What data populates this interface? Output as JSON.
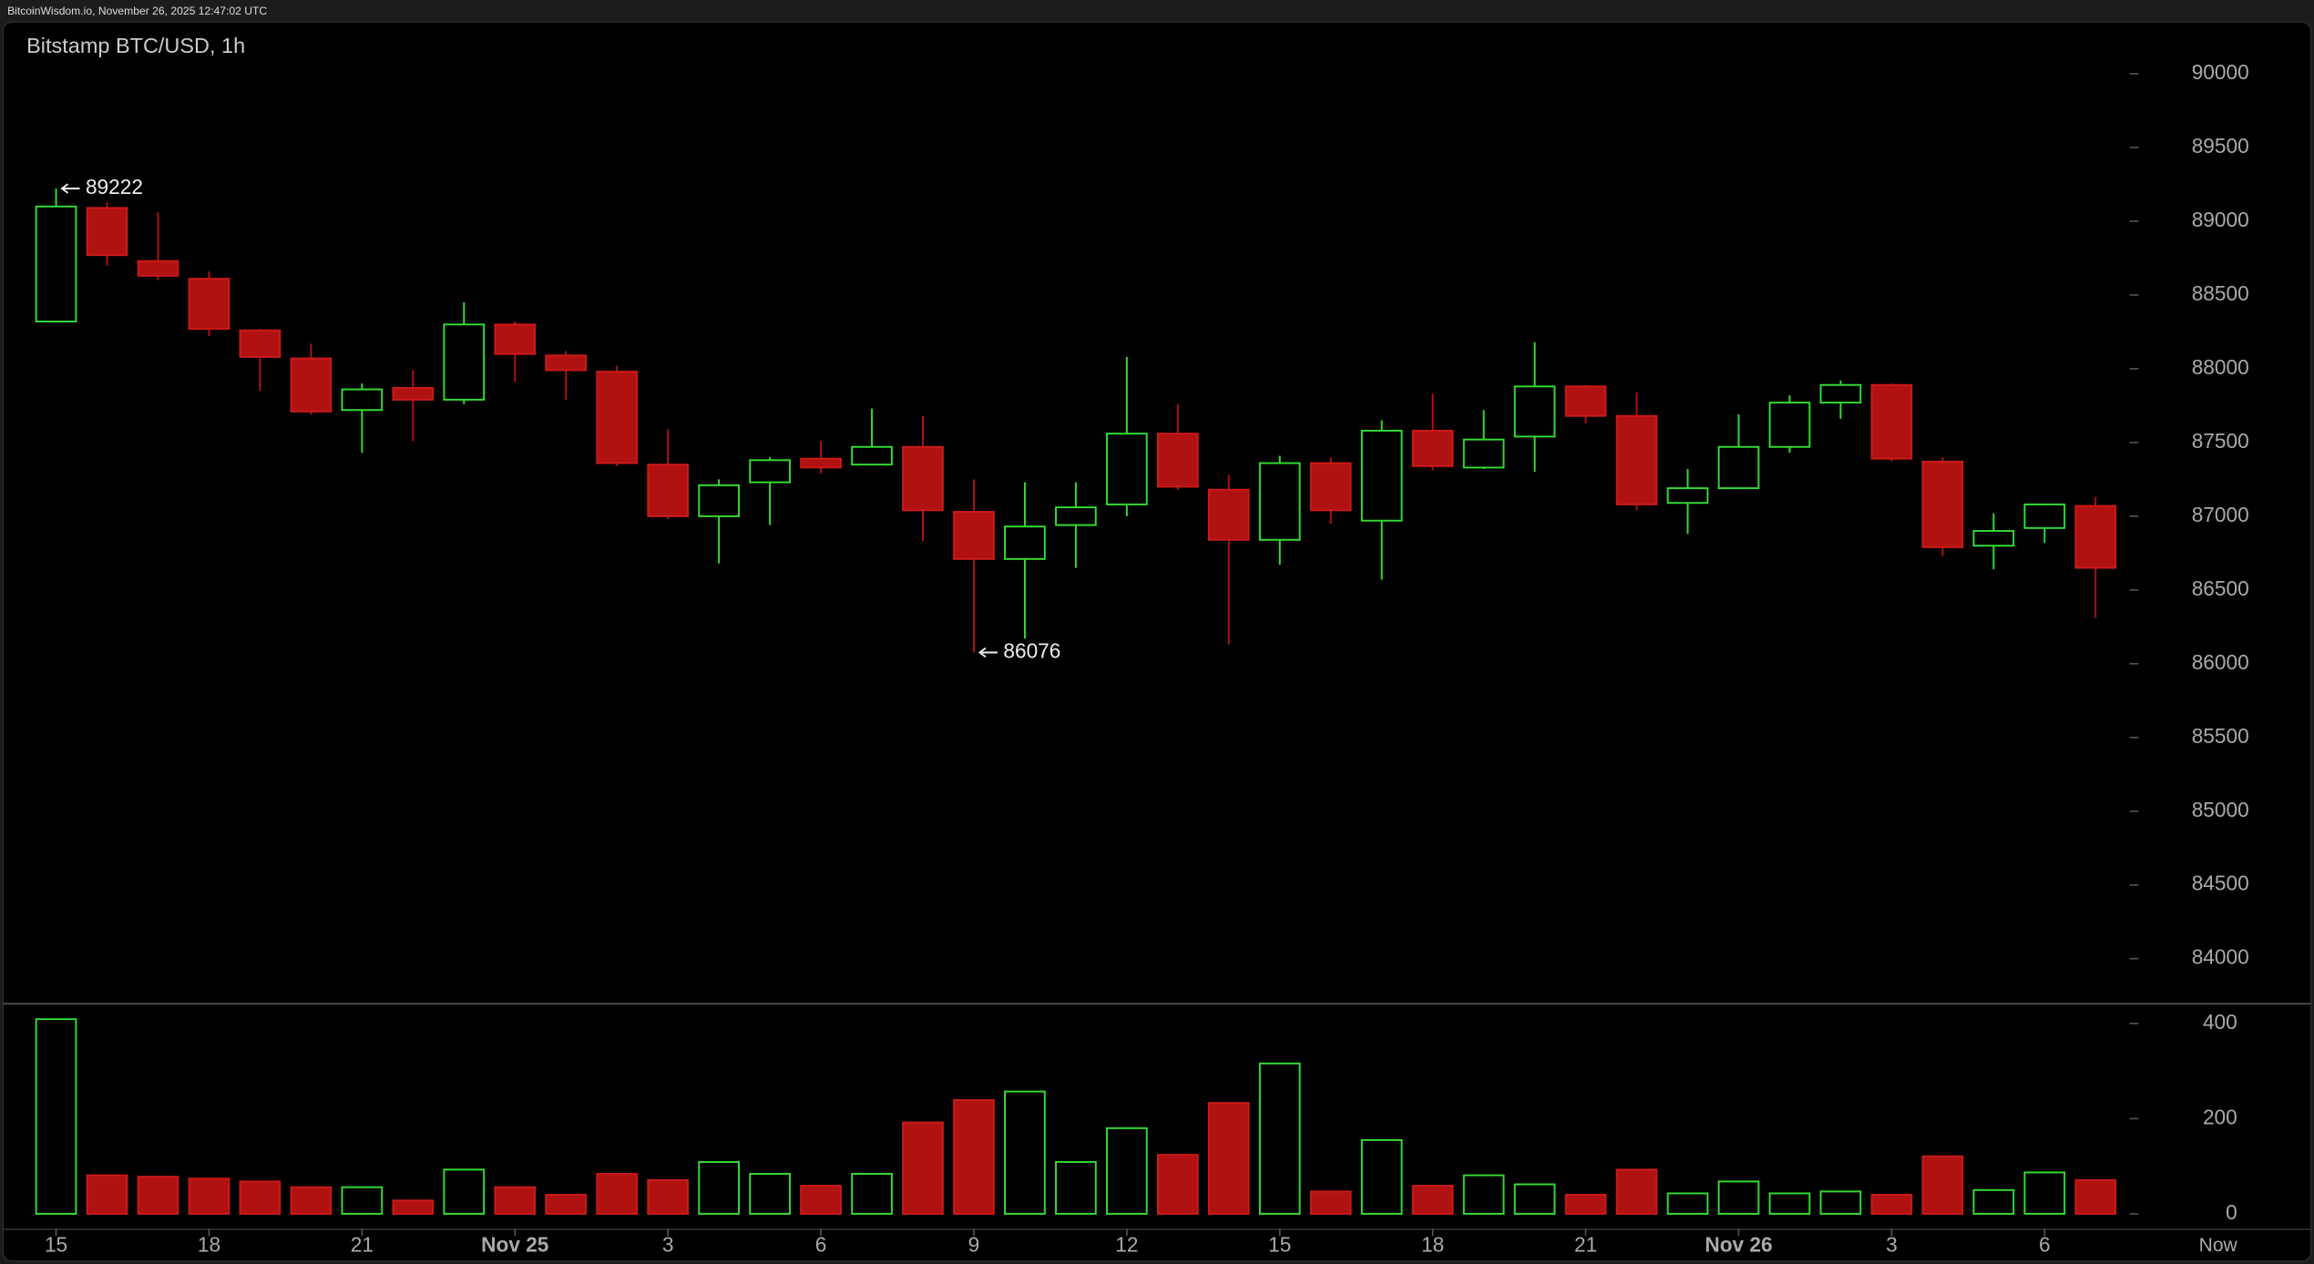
{
  "chart_data": {
    "type": "candlestick",
    "header": "BitcoinWisdom.io, November 26, 2025 12:47:02 UTC",
    "title": "Bitstamp BTC/USD, 1h",
    "categories": [
      "15",
      null,
      null,
      "18",
      null,
      null,
      "21",
      null,
      null,
      "Nov 25",
      null,
      null,
      "3",
      null,
      null,
      "6",
      null,
      null,
      "9",
      null,
      null,
      "12",
      null,
      null,
      "15",
      null,
      null,
      "18",
      null,
      null,
      "21",
      null,
      null,
      "Nov 26",
      null,
      null,
      "3",
      null,
      null,
      "6",
      null
    ],
    "x_end_label": "Now",
    "open": [
      88320,
      89090,
      88730,
      88610,
      88260,
      88070,
      87720,
      87870,
      87790,
      88300,
      88090,
      87980,
      87350,
      87000,
      87230,
      87390,
      87350,
      87470,
      87030,
      86710,
      86940,
      87080,
      87560,
      87180,
      86840,
      87360,
      86970,
      87580,
      87330,
      87540,
      87880,
      87680,
      87090,
      87190,
      87470,
      87770,
      87890,
      87370,
      86800,
      86920,
      87070
    ],
    "high": [
      89222,
      89130,
      89060,
      88660,
      88270,
      88170,
      87900,
      87990,
      88450,
      88320,
      88120,
      88020,
      87590,
      87250,
      87400,
      87510,
      87730,
      87680,
      87250,
      87230,
      87230,
      88080,
      87760,
      87280,
      87410,
      87400,
      87650,
      87830,
      87720,
      88180,
      87890,
      87840,
      87320,
      87690,
      87820,
      87920,
      87900,
      87400,
      87020,
      87080,
      87130
    ],
    "low": [
      88320,
      88700,
      88600,
      88220,
      87850,
      87690,
      87430,
      87510,
      87760,
      87910,
      87790,
      87340,
      86980,
      86680,
      86940,
      87290,
      87350,
      86830,
      86076,
      86170,
      86650,
      87000,
      87180,
      86130,
      86670,
      86950,
      86570,
      87310,
      87320,
      87300,
      87630,
      87040,
      86880,
      87190,
      87430,
      87660,
      87370,
      86730,
      86640,
      86820,
      86310
    ],
    "close": [
      89100,
      88770,
      88630,
      88270,
      88080,
      87710,
      87860,
      87790,
      88300,
      88100,
      87990,
      87360,
      87000,
      87210,
      87380,
      87330,
      87470,
      87040,
      86710,
      86930,
      87060,
      87560,
      87200,
      86840,
      87360,
      87040,
      87580,
      87340,
      87520,
      87880,
      87680,
      87080,
      87190,
      87470,
      87770,
      87890,
      87390,
      86790,
      86900,
      87080,
      86650
    ],
    "volume": [
      409,
      81,
      78,
      74,
      68,
      56,
      56,
      28,
      93,
      56,
      40,
      84,
      71,
      109,
      84,
      59,
      84,
      192,
      239,
      257,
      109,
      180,
      124,
      233,
      316,
      47,
      155,
      59,
      81,
      62,
      40,
      93,
      43,
      68,
      43,
      47,
      40,
      121,
      50,
      87,
      71
    ],
    "up_color": "#33dd33",
    "down_color": "#b01212",
    "ylim": [
      83700,
      90350
    ],
    "yticks": [
      84000,
      84500,
      85000,
      85500,
      86000,
      86500,
      87000,
      87500,
      88000,
      88500,
      89000,
      89500,
      90000
    ],
    "volume_ylim": [
      -31,
      440
    ],
    "volume_yticks": [
      0,
      200,
      400
    ],
    "grid": false
  }
}
